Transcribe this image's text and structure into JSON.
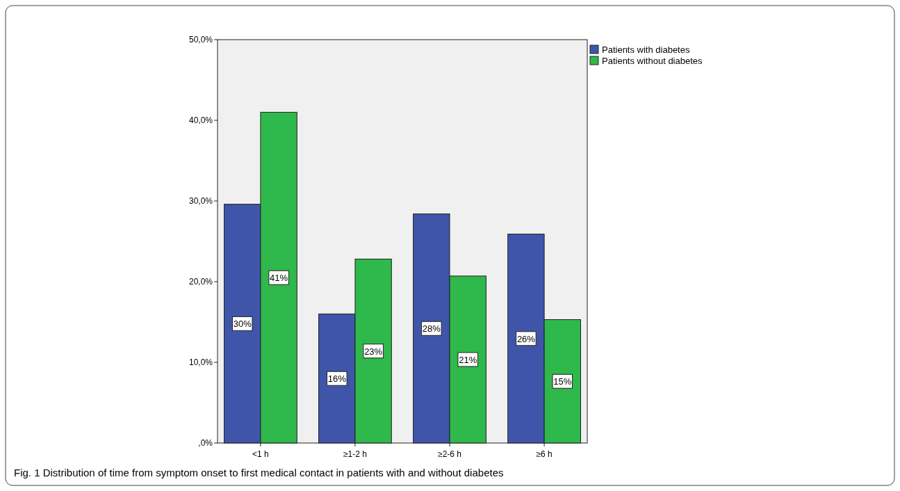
{
  "chart_data": {
    "type": "bar",
    "categories": [
      "<1 h",
      "≥1-2 h",
      "≥2-6 h",
      "≥6 h"
    ],
    "series": [
      {
        "name": "Patients with diabetes",
        "color": "#3f55a9",
        "values": [
          29.6,
          16.0,
          28.4,
          25.9
        ],
        "value_labels": [
          "30%",
          "16%",
          "28%",
          "26%"
        ]
      },
      {
        "name": "Patients without diabetes",
        "color": "#2fb84b",
        "values": [
          41.0,
          22.8,
          20.7,
          15.3
        ],
        "value_labels": [
          "41%",
          "23%",
          "21%",
          "15%"
        ]
      }
    ],
    "ylim": [
      0,
      50
    ],
    "yticks": [
      {
        "value": 0,
        "label": ",0%"
      },
      {
        "value": 10,
        "label": "10,0%"
      },
      {
        "value": 20,
        "label": "20,0%"
      },
      {
        "value": 30,
        "label": "30,0%"
      },
      {
        "value": 40,
        "label": "40,0%"
      },
      {
        "value": 50,
        "label": "50,0%"
      }
    ],
    "grid": false,
    "legend": "top right",
    "annotations": [
      "Fig. 1 Distribution of time from symptom onset to first medical contact in patients with and without diabetes"
    ]
  }
}
